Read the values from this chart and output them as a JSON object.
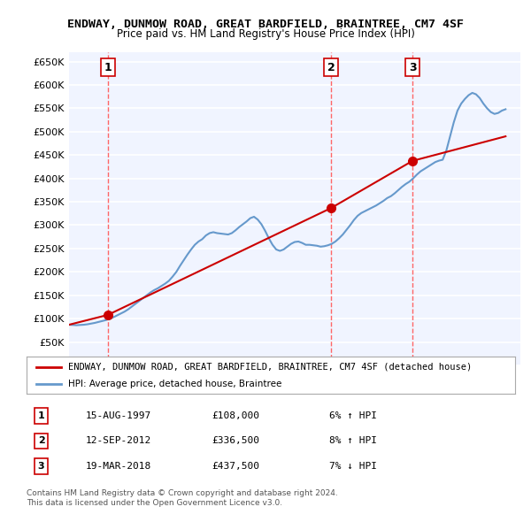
{
  "title": "ENDWAY, DUNMOW ROAD, GREAT BARDFIELD, BRAINTREE, CM7 4SF",
  "subtitle": "Price paid vs. HM Land Registry's House Price Index (HPI)",
  "ylim": [
    0,
    670000
  ],
  "yticks": [
    0,
    50000,
    100000,
    150000,
    200000,
    250000,
    300000,
    350000,
    400000,
    450000,
    500000,
    550000,
    600000,
    650000
  ],
  "xlim_start": 1995.0,
  "xlim_end": 2025.5,
  "bg_color": "#f0f4ff",
  "grid_color": "#ffffff",
  "sale_color": "#cc0000",
  "hpi_color": "#6699cc",
  "sale_marker_color": "#cc0000",
  "vline_color": "#ff6666",
  "legend_label_sale": "ENDWAY, DUNMOW ROAD, GREAT BARDFIELD, BRAINTREE, CM7 4SF (detached house)",
  "legend_label_hpi": "HPI: Average price, detached house, Braintree",
  "transactions": [
    {
      "num": 1,
      "date": "15-AUG-1997",
      "date_x": 1997.62,
      "price": 108000,
      "pct": "6%",
      "dir": "↑"
    },
    {
      "num": 2,
      "date": "12-SEP-2012",
      "date_x": 2012.7,
      "price": 336500,
      "pct": "8%",
      "dir": "↑"
    },
    {
      "num": 3,
      "date": "19-MAR-2018",
      "date_x": 2018.21,
      "price": 437500,
      "pct": "7%",
      "dir": "↓"
    }
  ],
  "footer": "Contains HM Land Registry data © Crown copyright and database right 2024.\nThis data is licensed under the Open Government Licence v3.0.",
  "hpi_data_x": [
    1995.0,
    1995.25,
    1995.5,
    1995.75,
    1996.0,
    1996.25,
    1996.5,
    1996.75,
    1997.0,
    1997.25,
    1997.5,
    1997.75,
    1998.0,
    1998.25,
    1998.5,
    1998.75,
    1999.0,
    1999.25,
    1999.5,
    1999.75,
    2000.0,
    2000.25,
    2000.5,
    2000.75,
    2001.0,
    2001.25,
    2001.5,
    2001.75,
    2002.0,
    2002.25,
    2002.5,
    2002.75,
    2003.0,
    2003.25,
    2003.5,
    2003.75,
    2004.0,
    2004.25,
    2004.5,
    2004.75,
    2005.0,
    2005.25,
    2005.5,
    2005.75,
    2006.0,
    2006.25,
    2006.5,
    2006.75,
    2007.0,
    2007.25,
    2007.5,
    2007.75,
    2008.0,
    2008.25,
    2008.5,
    2008.75,
    2009.0,
    2009.25,
    2009.5,
    2009.75,
    2010.0,
    2010.25,
    2010.5,
    2010.75,
    2011.0,
    2011.25,
    2011.5,
    2011.75,
    2012.0,
    2012.25,
    2012.5,
    2012.75,
    2013.0,
    2013.25,
    2013.5,
    2013.75,
    2014.0,
    2014.25,
    2014.5,
    2014.75,
    2015.0,
    2015.25,
    2015.5,
    2015.75,
    2016.0,
    2016.25,
    2016.5,
    2016.75,
    2017.0,
    2017.25,
    2017.5,
    2017.75,
    2018.0,
    2018.25,
    2018.5,
    2018.75,
    2019.0,
    2019.25,
    2019.5,
    2019.75,
    2020.0,
    2020.25,
    2020.5,
    2020.75,
    2021.0,
    2021.25,
    2021.5,
    2021.75,
    2022.0,
    2022.25,
    2022.5,
    2022.75,
    2023.0,
    2023.25,
    2023.5,
    2023.75,
    2024.0,
    2024.25,
    2024.5
  ],
  "hpi_data_y": [
    87000,
    86500,
    86000,
    86500,
    87000,
    88000,
    89500,
    91000,
    93000,
    95000,
    97000,
    100000,
    103000,
    107000,
    111000,
    115000,
    120000,
    126000,
    132000,
    138000,
    144000,
    150000,
    156000,
    161000,
    165000,
    170000,
    175000,
    181000,
    190000,
    200000,
    213000,
    225000,
    237000,
    248000,
    258000,
    265000,
    270000,
    278000,
    283000,
    285000,
    283000,
    282000,
    281000,
    280000,
    283000,
    289000,
    296000,
    302000,
    308000,
    315000,
    318000,
    312000,
    302000,
    288000,
    272000,
    258000,
    248000,
    245000,
    248000,
    254000,
    260000,
    264000,
    265000,
    262000,
    258000,
    258000,
    257000,
    256000,
    254000,
    255000,
    257000,
    260000,
    265000,
    272000,
    280000,
    290000,
    300000,
    311000,
    320000,
    326000,
    330000,
    334000,
    338000,
    342000,
    347000,
    352000,
    358000,
    362000,
    368000,
    375000,
    382000,
    388000,
    393000,
    400000,
    408000,
    415000,
    420000,
    425000,
    430000,
    435000,
    438000,
    440000,
    460000,
    490000,
    520000,
    545000,
    560000,
    570000,
    578000,
    583000,
    580000,
    572000,
    560000,
    550000,
    542000,
    538000,
    540000,
    545000,
    548000
  ],
  "sale_line_x": [
    1995.0,
    1997.62,
    2012.7,
    2018.21,
    2024.5
  ],
  "sale_line_y": [
    87000,
    108000,
    336500,
    437500,
    490000
  ]
}
